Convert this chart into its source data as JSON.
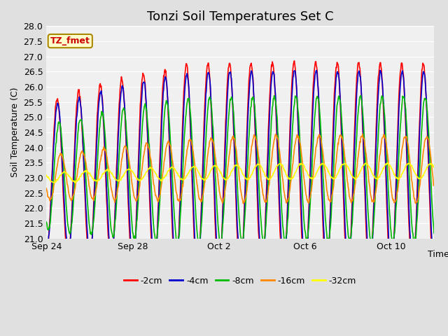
{
  "title": "Tonzi Soil Temperatures Set C",
  "xlabel": "Time",
  "ylabel": "Soil Temperature (C)",
  "ylim": [
    21.0,
    28.0
  ],
  "yticks": [
    21.0,
    21.5,
    22.0,
    22.5,
    23.0,
    23.5,
    24.0,
    24.5,
    25.0,
    25.5,
    26.0,
    26.5,
    27.0,
    27.5,
    28.0
  ],
  "xtick_positions": [
    0,
    4,
    8,
    12,
    16
  ],
  "xtick_labels": [
    "Sep 24",
    "Sep 28",
    "Oct 2",
    "Oct 6",
    "Oct 10"
  ],
  "legend_labels": [
    "-2cm",
    "-4cm",
    "-8cm",
    "-16cm",
    "-32cm"
  ],
  "line_colors": [
    "#ff0000",
    "#0000cc",
    "#00bb00",
    "#ff8800",
    "#ffff00"
  ],
  "annotation_text": "TZ_fmet",
  "fig_facecolor": "#e0e0e0",
  "ax_facecolor": "#f0f0f0",
  "title_fontsize": 13,
  "n_days": 18.0,
  "base_temp": 23.0,
  "seed": 42
}
